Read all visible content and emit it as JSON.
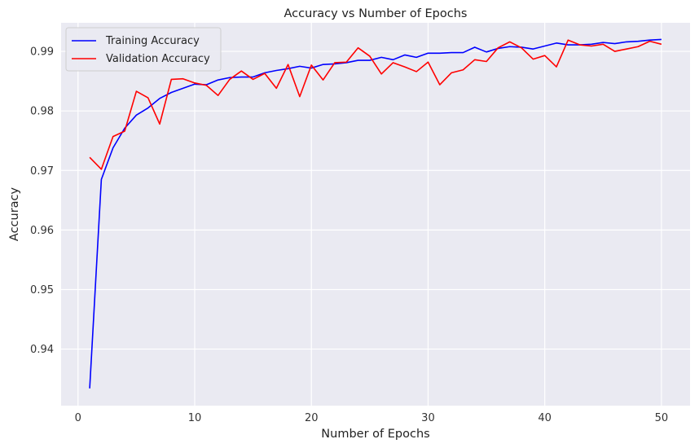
{
  "chart_data": {
    "type": "line",
    "title": "Accuracy vs Number of Epochs",
    "xlabel": "Number of Epochs",
    "ylabel": "Accuracy",
    "xlim": [
      -1.45,
      52.45
    ],
    "ylim": [
      0.9305,
      0.9948
    ],
    "xticks": [
      0,
      10,
      20,
      30,
      40,
      50
    ],
    "yticks": [
      0.94,
      0.95,
      0.96,
      0.97,
      0.98,
      0.99
    ],
    "xtick_labels": [
      "0",
      "10",
      "20",
      "30",
      "40",
      "50"
    ],
    "ytick_labels": [
      "0.94",
      "0.95",
      "0.96",
      "0.97",
      "0.98",
      "0.99"
    ],
    "grid": true,
    "legend_position": "top-left",
    "background": "#eaeaf2",
    "x": [
      1,
      2,
      3,
      4,
      5,
      6,
      7,
      8,
      9,
      10,
      11,
      12,
      13,
      14,
      15,
      16,
      17,
      18,
      19,
      20,
      21,
      22,
      23,
      24,
      25,
      26,
      27,
      28,
      29,
      30,
      31,
      32,
      33,
      34,
      35,
      36,
      37,
      38,
      39,
      40,
      41,
      42,
      43,
      44,
      45,
      46,
      47,
      48,
      49,
      50
    ],
    "series": [
      {
        "name": "Training Accuracy",
        "color": "#0000ff",
        "values": [
          0.9334,
          0.9685,
          0.9738,
          0.9771,
          0.9793,
          0.9805,
          0.9821,
          0.9831,
          0.9838,
          0.9845,
          0.9844,
          0.9852,
          0.9856,
          0.9857,
          0.9857,
          0.9864,
          0.9868,
          0.9871,
          0.9875,
          0.9872,
          0.9878,
          0.9879,
          0.9881,
          0.9885,
          0.9885,
          0.989,
          0.9886,
          0.9894,
          0.989,
          0.9897,
          0.9897,
          0.9898,
          0.9898,
          0.9907,
          0.9899,
          0.9905,
          0.9908,
          0.9907,
          0.9904,
          0.9909,
          0.9914,
          0.9911,
          0.9911,
          0.9912,
          0.9915,
          0.9913,
          0.9916,
          0.9917,
          0.9919,
          0.992
        ]
      },
      {
        "name": "Validation Accuracy",
        "color": "#ff0000",
        "values": [
          0.9722,
          0.9702,
          0.9757,
          0.9766,
          0.9833,
          0.9822,
          0.9778,
          0.9853,
          0.9854,
          0.9847,
          0.9843,
          0.9826,
          0.9853,
          0.9867,
          0.9853,
          0.9863,
          0.9838,
          0.9878,
          0.9824,
          0.9877,
          0.9852,
          0.9881,
          0.9882,
          0.9906,
          0.9892,
          0.9862,
          0.9881,
          0.9874,
          0.9866,
          0.9882,
          0.9844,
          0.9864,
          0.9869,
          0.9886,
          0.9883,
          0.9906,
          0.9916,
          0.9906,
          0.9887,
          0.9893,
          0.9874,
          0.9919,
          0.9911,
          0.9909,
          0.9912,
          0.99,
          0.9904,
          0.9908,
          0.9917,
          0.9912
        ]
      }
    ]
  }
}
